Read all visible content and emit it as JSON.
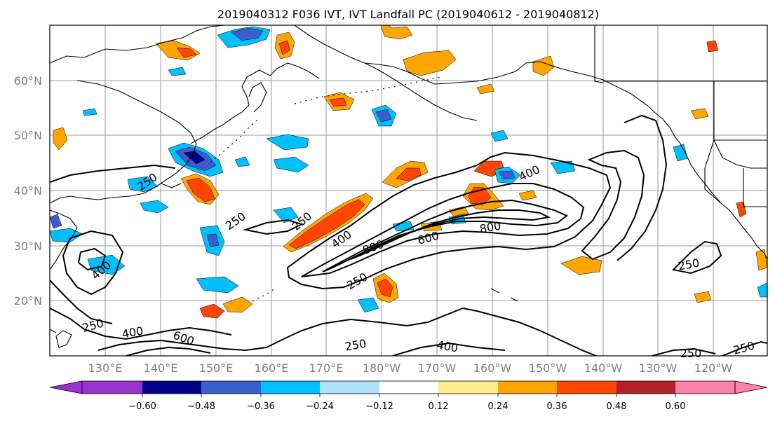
{
  "title": "2019040312 F036 IVT, IVT Landfall PC (2019040612 - 2019040812)",
  "map": {
    "lat_ticks": [
      "60°N",
      "50°N",
      "40°N",
      "30°N",
      "20°N"
    ],
    "lon_ticks": [
      "130°E",
      "140°E",
      "150°E",
      "160°E",
      "170°E",
      "180°W",
      "170°W",
      "160°W",
      "150°W",
      "140°W",
      "130°W",
      "120°W"
    ],
    "contour_labels": [
      "250",
      "400",
      "600",
      "800",
      "250",
      "400",
      "600",
      "800",
      "250",
      "250",
      "400",
      "600",
      "250",
      "400",
      "250",
      "250",
      "250",
      "250",
      "400"
    ]
  },
  "colorbar": {
    "labels": [
      "−0.60",
      "−0.48",
      "−0.36",
      "−0.24",
      "−0.12",
      "0.12",
      "0.24",
      "0.36",
      "0.48",
      "0.60"
    ],
    "colors": [
      "#9a32cd",
      "#00008b",
      "#3a5fcd",
      "#00bfff",
      "#b0e2ff",
      "#ffffff",
      "#ffec8b",
      "#ffa500",
      "#ff4500",
      "#b22222",
      "#ff82ab"
    ]
  }
}
